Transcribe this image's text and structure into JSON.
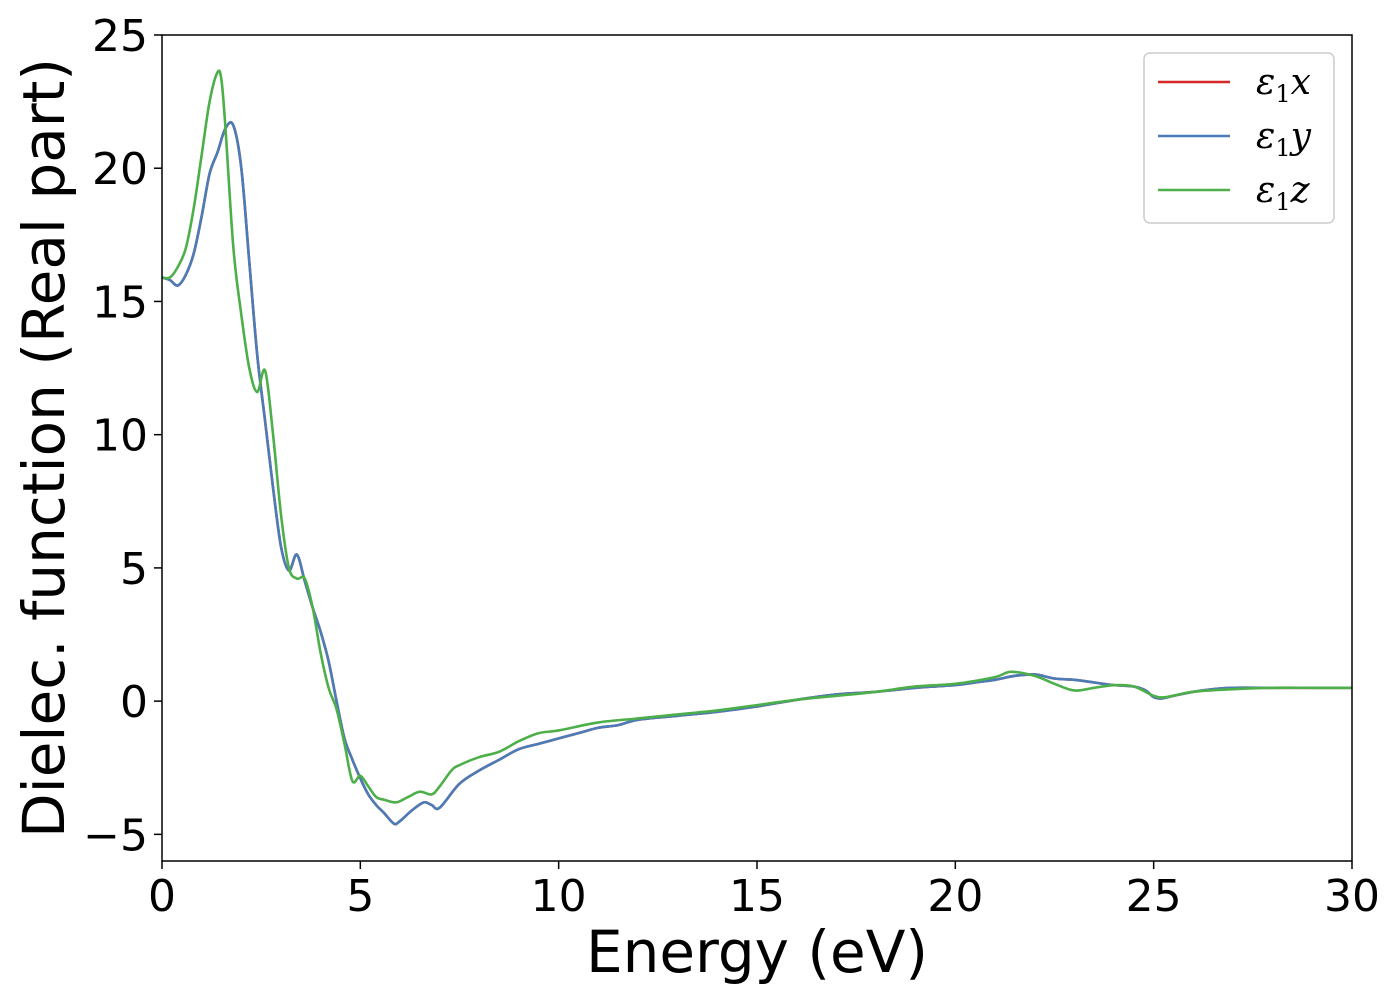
{
  "chart_data": {
    "type": "line",
    "xlabel": "Energy (eV)",
    "ylabel": "Dielec. function (Real part)",
    "xlim": [
      0,
      30
    ],
    "ylim": [
      -6,
      25
    ],
    "xticks": [
      0,
      5,
      10,
      15,
      20,
      25,
      30
    ],
    "yticks": [
      -5,
      0,
      5,
      10,
      15,
      20,
      25
    ],
    "xtick_labels": [
      "0",
      "5",
      "10",
      "15",
      "20",
      "25",
      "30"
    ],
    "ytick_labels": [
      "−5",
      "0",
      "5",
      "10",
      "15",
      "20",
      "25"
    ],
    "grid": false,
    "legend_position": "top-right",
    "series": [
      {
        "name": "ε₁x",
        "legend_main": "ε",
        "legend_sub": "1",
        "legend_var": "x",
        "color": "#d62728",
        "x": [
          0,
          0.2,
          0.4,
          0.6,
          0.8,
          1.0,
          1.2,
          1.4,
          1.6,
          1.8,
          2.0,
          2.2,
          2.4,
          2.6,
          2.8,
          3.0,
          3.2,
          3.4,
          3.6,
          3.8,
          4.0,
          4.2,
          4.4,
          4.6,
          4.8,
          5.0,
          5.2,
          5.4,
          5.6,
          5.85,
          6.0,
          6.3,
          6.6,
          6.8,
          7.0,
          7.5,
          8.0,
          8.5,
          9.0,
          9.5,
          10.0,
          10.5,
          11.0,
          11.5,
          12.0,
          13.0,
          14.0,
          15.0,
          16.0,
          17.0,
          18.0,
          19.0,
          20.0,
          20.5,
          21.0,
          21.5,
          22.0,
          22.5,
          23.0,
          23.5,
          24.0,
          24.5,
          24.8,
          25.0,
          25.2,
          25.5,
          26.0,
          26.5,
          27.0,
          28.0,
          29.0,
          30.0
        ],
        "y": [
          15.9,
          15.8,
          15.6,
          16.0,
          16.8,
          18.2,
          19.8,
          20.6,
          21.5,
          21.6,
          20.0,
          16.5,
          13.0,
          10.5,
          8.0,
          5.8,
          4.9,
          5.5,
          4.5,
          3.5,
          2.6,
          1.5,
          0.0,
          -1.4,
          -2.2,
          -2.9,
          -3.5,
          -3.9,
          -4.2,
          -4.6,
          -4.5,
          -4.1,
          -3.8,
          -3.9,
          -4.0,
          -3.1,
          -2.6,
          -2.2,
          -1.8,
          -1.6,
          -1.4,
          -1.2,
          -1.0,
          -0.9,
          -0.7,
          -0.55,
          -0.4,
          -0.2,
          0.05,
          0.25,
          0.35,
          0.5,
          0.6,
          0.7,
          0.8,
          0.95,
          1.0,
          0.85,
          0.8,
          0.7,
          0.6,
          0.55,
          0.4,
          0.15,
          0.1,
          0.2,
          0.35,
          0.45,
          0.5,
          0.5,
          0.5,
          0.5
        ]
      },
      {
        "name": "ε₁y",
        "legend_main": "ε",
        "legend_sub": "1",
        "legend_var": "y",
        "color": "#4a7db8",
        "x": [
          0,
          0.2,
          0.4,
          0.6,
          0.8,
          1.0,
          1.2,
          1.4,
          1.6,
          1.8,
          2.0,
          2.2,
          2.4,
          2.6,
          2.8,
          3.0,
          3.2,
          3.4,
          3.6,
          3.8,
          4.0,
          4.2,
          4.4,
          4.6,
          4.8,
          5.0,
          5.2,
          5.4,
          5.6,
          5.85,
          6.0,
          6.3,
          6.6,
          6.8,
          7.0,
          7.5,
          8.0,
          8.5,
          9.0,
          9.5,
          10.0,
          10.5,
          11.0,
          11.5,
          12.0,
          13.0,
          14.0,
          15.0,
          16.0,
          17.0,
          18.0,
          19.0,
          20.0,
          20.5,
          21.0,
          21.5,
          22.0,
          22.5,
          23.0,
          23.5,
          24.0,
          24.5,
          24.8,
          25.0,
          25.2,
          25.5,
          26.0,
          26.5,
          27.0,
          28.0,
          29.0,
          30.0
        ],
        "y": [
          15.9,
          15.8,
          15.6,
          16.0,
          16.8,
          18.2,
          19.8,
          20.6,
          21.5,
          21.6,
          20.0,
          16.5,
          13.0,
          10.5,
          8.0,
          5.8,
          4.9,
          5.5,
          4.5,
          3.5,
          2.6,
          1.5,
          0.0,
          -1.4,
          -2.2,
          -2.9,
          -3.5,
          -3.9,
          -4.2,
          -4.6,
          -4.5,
          -4.1,
          -3.8,
          -3.9,
          -4.0,
          -3.1,
          -2.6,
          -2.2,
          -1.8,
          -1.6,
          -1.4,
          -1.2,
          -1.0,
          -0.9,
          -0.7,
          -0.55,
          -0.4,
          -0.2,
          0.05,
          0.25,
          0.35,
          0.5,
          0.6,
          0.7,
          0.8,
          0.95,
          1.0,
          0.85,
          0.8,
          0.7,
          0.6,
          0.55,
          0.4,
          0.15,
          0.1,
          0.2,
          0.35,
          0.45,
          0.5,
          0.5,
          0.5,
          0.5
        ]
      },
      {
        "name": "ε₁z",
        "legend_main": "ε",
        "legend_sub": "1",
        "legend_var": "z",
        "color": "#4daf4a",
        "x": [
          0,
          0.2,
          0.4,
          0.6,
          0.8,
          1.0,
          1.2,
          1.4,
          1.5,
          1.6,
          1.8,
          2.0,
          2.2,
          2.4,
          2.6,
          2.8,
          3.0,
          3.2,
          3.4,
          3.6,
          3.8,
          4.0,
          4.2,
          4.4,
          4.6,
          4.8,
          5.0,
          5.2,
          5.4,
          5.6,
          5.9,
          6.2,
          6.5,
          6.8,
          7.0,
          7.3,
          7.5,
          8.0,
          8.5,
          9.0,
          9.5,
          10.0,
          11.0,
          12.0,
          13.0,
          14.0,
          15.0,
          16.0,
          17.0,
          18.0,
          19.0,
          20.0,
          21.0,
          21.4,
          22.0,
          22.5,
          23.0,
          23.5,
          24.0,
          24.5,
          25.0,
          25.3,
          26.0,
          27.0,
          28.0,
          29.0,
          30.0
        ],
        "y": [
          15.9,
          15.9,
          16.3,
          17.0,
          18.5,
          20.5,
          22.5,
          23.6,
          23.3,
          21.5,
          17.0,
          14.5,
          12.5,
          11.6,
          12.4,
          10.0,
          7.0,
          5.0,
          4.6,
          4.6,
          3.5,
          1.8,
          0.5,
          -0.3,
          -1.6,
          -3.0,
          -2.8,
          -3.2,
          -3.6,
          -3.7,
          -3.8,
          -3.6,
          -3.4,
          -3.5,
          -3.2,
          -2.6,
          -2.4,
          -2.1,
          -1.9,
          -1.5,
          -1.2,
          -1.1,
          -0.8,
          -0.65,
          -0.5,
          -0.35,
          -0.15,
          0.05,
          0.2,
          0.35,
          0.55,
          0.65,
          0.9,
          1.1,
          0.95,
          0.65,
          0.4,
          0.5,
          0.6,
          0.55,
          0.2,
          0.15,
          0.35,
          0.45,
          0.5,
          0.5,
          0.5
        ]
      }
    ]
  }
}
